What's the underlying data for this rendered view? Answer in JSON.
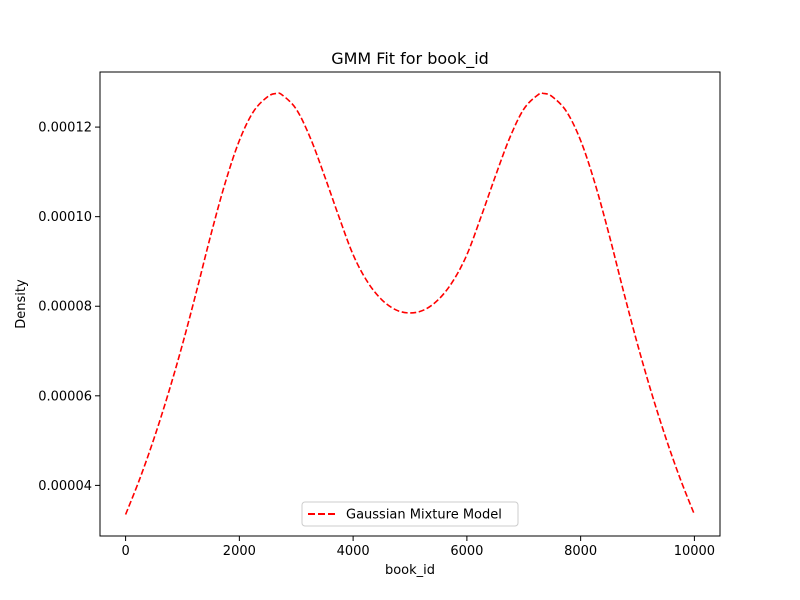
{
  "chart_data": {
    "type": "line",
    "title": "GMM Fit for book_id",
    "xlabel": "book_id",
    "ylabel": "Density",
    "xlim": [
      -450,
      10450
    ],
    "ylim": [
      2.87e-05,
      0.0001323
    ],
    "x_ticks": [
      0,
      2000,
      4000,
      6000,
      8000,
      10000
    ],
    "x_tick_labels": [
      "0",
      "2000",
      "4000",
      "6000",
      "8000",
      "10000"
    ],
    "y_ticks": [
      4e-05,
      6e-05,
      8e-05,
      0.0001,
      0.00012
    ],
    "y_tick_labels": [
      "0.00004",
      "0.00006",
      "0.00008",
      "0.00010",
      "0.00012"
    ],
    "grid": false,
    "legend_position": "bottom-center",
    "series": [
      {
        "name": "Gaussian Mixture Model",
        "color": "#ff0000",
        "line_style": "dashed",
        "x": [
          0,
          250,
          500,
          750,
          1000,
          1250,
          1500,
          1750,
          2000,
          2250,
          2500,
          2650,
          2750,
          3000,
          3250,
          3500,
          3750,
          4000,
          4250,
          4500,
          4750,
          5000,
          5250,
          5500,
          5750,
          6000,
          6250,
          6500,
          6750,
          7000,
          7250,
          7350,
          7500,
          7750,
          8000,
          8250,
          8500,
          8750,
          9000,
          9250,
          9500,
          9750,
          10000
        ],
        "y": [
          3.35e-05,
          4.15e-05,
          5.05e-05,
          6.05e-05,
          7.15e-05,
          8.35e-05,
          9.6e-05,
          0.0001075,
          0.000117,
          0.0001235,
          0.0001268,
          0.0001275,
          0.0001272,
          0.000124,
          0.0001175,
          0.000109,
          0.0001,
          9.15e-05,
          8.55e-05,
          8.15e-05,
          7.92e-05,
          7.85e-05,
          7.92e-05,
          8.15e-05,
          8.55e-05,
          9.15e-05,
          0.0001,
          0.000109,
          0.0001175,
          0.000124,
          0.0001272,
          0.0001275,
          0.0001268,
          0.0001235,
          0.000117,
          0.0001075,
          9.6e-05,
          8.35e-05,
          7.15e-05,
          6.05e-05,
          5.05e-05,
          4.15e-05,
          3.35e-05
        ]
      }
    ]
  }
}
